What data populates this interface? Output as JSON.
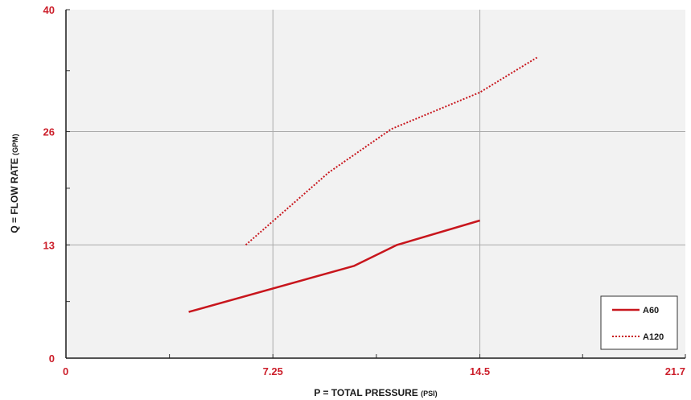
{
  "chart_data": {
    "type": "line",
    "xlabel": "P = TOTAL PRESSURE",
    "xlabel_unit": "(PSI)",
    "ylabel": "Q = FLOW RATE",
    "ylabel_unit": "(GPM)",
    "xlim": [
      0,
      21.7
    ],
    "ylim": [
      0,
      40
    ],
    "x_ticks": [
      0,
      7.25,
      14.5,
      21.7
    ],
    "x_tick_labels": [
      "0",
      "7.25",
      "14.5",
      "21.7"
    ],
    "y_ticks": [
      0,
      13,
      26,
      40
    ],
    "y_tick_labels": [
      "0",
      "13",
      "26",
      "40"
    ],
    "grid": true,
    "legend_position": "bottom-right",
    "colors": {
      "line": "#c8161d",
      "grid": "#aaaaaa",
      "plot_bg": "#f2f2f2",
      "tick_label": "#cc1f2b"
    },
    "series": [
      {
        "name": "A60",
        "style": "solid",
        "x": [
          4.3,
          10.1,
          11.6,
          14.5
        ],
        "y": [
          5.3,
          10.6,
          13.0,
          15.8
        ]
      },
      {
        "name": "A120",
        "style": "dotted",
        "x": [
          6.3,
          9.2,
          11.4,
          14.5,
          16.5
        ],
        "y": [
          13.0,
          21.3,
          26.3,
          30.5,
          34.5
        ]
      }
    ]
  }
}
